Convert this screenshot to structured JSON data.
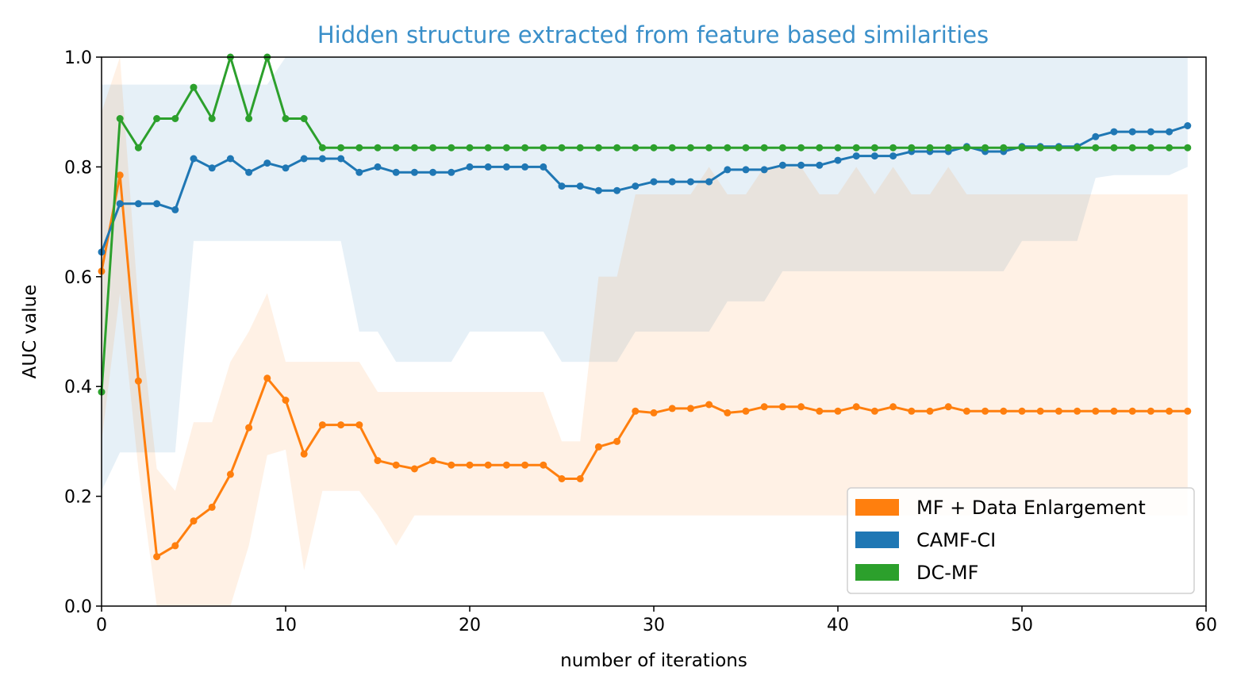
{
  "chart_data": {
    "type": "line",
    "title": "Hidden structure extracted from feature based similarities",
    "title_color": "#3a8fc9",
    "xlabel": "number of iterations",
    "ylabel": "AUC value",
    "xlim": [
      0,
      60
    ],
    "ylim": [
      0.0,
      1.0
    ],
    "xticks": [
      0,
      10,
      20,
      30,
      40,
      50,
      60
    ],
    "xtick_labels": [
      "0",
      "10",
      "20",
      "30",
      "40",
      "50",
      "60"
    ],
    "yticks": [
      0.0,
      0.2,
      0.4,
      0.6,
      0.8,
      1.0
    ],
    "ytick_labels": [
      "0.0",
      "0.2",
      "0.4",
      "0.6",
      "0.8",
      "1.0"
    ],
    "grid": false,
    "legend_position": "lower-right",
    "x": [
      0,
      1,
      2,
      3,
      4,
      5,
      6,
      7,
      8,
      9,
      10,
      11,
      12,
      13,
      14,
      15,
      16,
      17,
      18,
      19,
      20,
      21,
      22,
      23,
      24,
      25,
      26,
      27,
      28,
      29,
      30,
      31,
      32,
      33,
      34,
      35,
      36,
      37,
      38,
      39,
      40,
      41,
      42,
      43,
      44,
      45,
      46,
      47,
      48,
      49,
      50,
      51,
      52,
      53,
      54,
      55,
      56,
      57,
      58,
      59
    ],
    "series": [
      {
        "name": "CAMF-CI",
        "color": "#1f77b4",
        "values": [
          0.645,
          0.733,
          0.733,
          0.733,
          0.722,
          0.815,
          0.798,
          0.815,
          0.79,
          0.807,
          0.798,
          0.815,
          0.815,
          0.815,
          0.79,
          0.8,
          0.79,
          0.79,
          0.79,
          0.79,
          0.8,
          0.8,
          0.8,
          0.8,
          0.8,
          0.765,
          0.765,
          0.757,
          0.757,
          0.765,
          0.773,
          0.773,
          0.773,
          0.773,
          0.795,
          0.795,
          0.795,
          0.803,
          0.803,
          0.803,
          0.812,
          0.82,
          0.82,
          0.82,
          0.828,
          0.828,
          0.828,
          0.837,
          0.828,
          0.828,
          0.837,
          0.837,
          0.837,
          0.837,
          0.855,
          0.864,
          0.864,
          0.864,
          0.864,
          0.875
        ],
        "band_upper": [
          0.95,
          0.95,
          0.95,
          0.95,
          0.95,
          0.95,
          0.95,
          0.95,
          0.95,
          0.95,
          1.0,
          1.0,
          1.0,
          1.0,
          1.0,
          1.0,
          1.0,
          1.0,
          1.0,
          1.0,
          1.0,
          1.0,
          1.0,
          1.0,
          1.0,
          1.0,
          1.0,
          1.0,
          1.0,
          1.0,
          1.0,
          1.0,
          1.0,
          1.0,
          1.0,
          1.0,
          1.0,
          1.0,
          1.0,
          1.0,
          1.0,
          1.0,
          1.0,
          1.0,
          1.0,
          1.0,
          1.0,
          1.0,
          1.0,
          1.0,
          1.0,
          1.0,
          1.0,
          1.0,
          1.0,
          1.0,
          1.0,
          1.0,
          1.0,
          1.0
        ],
        "band_lower": [
          0.21,
          0.28,
          0.28,
          0.28,
          0.28,
          0.665,
          0.665,
          0.665,
          0.665,
          0.665,
          0.665,
          0.665,
          0.665,
          0.665,
          0.5,
          0.5,
          0.445,
          0.445,
          0.445,
          0.445,
          0.5,
          0.5,
          0.5,
          0.5,
          0.5,
          0.445,
          0.445,
          0.445,
          0.445,
          0.5,
          0.5,
          0.5,
          0.5,
          0.5,
          0.555,
          0.555,
          0.555,
          0.61,
          0.61,
          0.61,
          0.61,
          0.61,
          0.61,
          0.61,
          0.61,
          0.61,
          0.61,
          0.61,
          0.61,
          0.61,
          0.665,
          0.665,
          0.665,
          0.665,
          0.78,
          0.785,
          0.785,
          0.785,
          0.785,
          0.8
        ]
      },
      {
        "name": "MF + Data Enlargement",
        "color": "#ff7f0e",
        "values": [
          0.61,
          0.785,
          0.41,
          0.09,
          0.11,
          0.155,
          0.18,
          0.24,
          0.325,
          0.415,
          0.375,
          0.277,
          0.33,
          0.33,
          0.33,
          0.265,
          0.257,
          0.25,
          0.265,
          0.257,
          0.257,
          0.257,
          0.257,
          0.257,
          0.257,
          0.232,
          0.232,
          0.29,
          0.3,
          0.355,
          0.352,
          0.36,
          0.36,
          0.367,
          0.352,
          0.355,
          0.363,
          0.363,
          0.363,
          0.355,
          0.355,
          0.363,
          0.355,
          0.363,
          0.355,
          0.355,
          0.363,
          0.355,
          0.355,
          0.355,
          0.355,
          0.355,
          0.355,
          0.355,
          0.355,
          0.355,
          0.355,
          0.355,
          0.355,
          0.355
        ],
        "band_upper": [
          0.9,
          1.0,
          0.55,
          0.25,
          0.21,
          0.335,
          0.335,
          0.445,
          0.5,
          0.57,
          0.445,
          0.445,
          0.445,
          0.445,
          0.445,
          0.39,
          0.39,
          0.39,
          0.39,
          0.39,
          0.39,
          0.39,
          0.39,
          0.39,
          0.39,
          0.3,
          0.3,
          0.6,
          0.6,
          0.75,
          0.75,
          0.75,
          0.75,
          0.8,
          0.75,
          0.75,
          0.8,
          0.8,
          0.8,
          0.75,
          0.75,
          0.8,
          0.75,
          0.8,
          0.75,
          0.75,
          0.8,
          0.75,
          0.75,
          0.75,
          0.75,
          0.75,
          0.75,
          0.75,
          0.75,
          0.75,
          0.75,
          0.75,
          0.75,
          0.75
        ],
        "band_lower": [
          0.3,
          0.57,
          0.25,
          0.0,
          0.0,
          0.0,
          0.0,
          0.0,
          0.11,
          0.275,
          0.285,
          0.065,
          0.21,
          0.21,
          0.21,
          0.165,
          0.11,
          0.165,
          0.165,
          0.165,
          0.165,
          0.165,
          0.165,
          0.165,
          0.165,
          0.165,
          0.165,
          0.165,
          0.165,
          0.165,
          0.165,
          0.165,
          0.165,
          0.165,
          0.165,
          0.165,
          0.165,
          0.165,
          0.165,
          0.165,
          0.165,
          0.165,
          0.165,
          0.165,
          0.165,
          0.165,
          0.165,
          0.165,
          0.165,
          0.165,
          0.165,
          0.165,
          0.165,
          0.165,
          0.165,
          0.165,
          0.165,
          0.165,
          0.165,
          0.165
        ]
      },
      {
        "name": "DC-MF",
        "color": "#2ca02c",
        "values": [
          0.39,
          0.888,
          0.835,
          0.888,
          0.888,
          0.945,
          0.888,
          1.0,
          0.888,
          1.0,
          0.888,
          0.888,
          0.835,
          0.835,
          0.835,
          0.835,
          0.835,
          0.835,
          0.835,
          0.835,
          0.835,
          0.835,
          0.835,
          0.835,
          0.835,
          0.835,
          0.835,
          0.835,
          0.835,
          0.835,
          0.835,
          0.835,
          0.835,
          0.835,
          0.835,
          0.835,
          0.835,
          0.835,
          0.835,
          0.835,
          0.835,
          0.835,
          0.835,
          0.835,
          0.835,
          0.835,
          0.835,
          0.835,
          0.835,
          0.835,
          0.835,
          0.835,
          0.835,
          0.835,
          0.835,
          0.835,
          0.835,
          0.835,
          0.835,
          0.835
        ]
      }
    ],
    "legend": [
      {
        "label": "MF + Data Enlargement",
        "color": "#ff7f0e"
      },
      {
        "label": "CAMF-CI",
        "color": "#1f77b4"
      },
      {
        "label": "DC-MF",
        "color": "#2ca02c"
      }
    ]
  }
}
